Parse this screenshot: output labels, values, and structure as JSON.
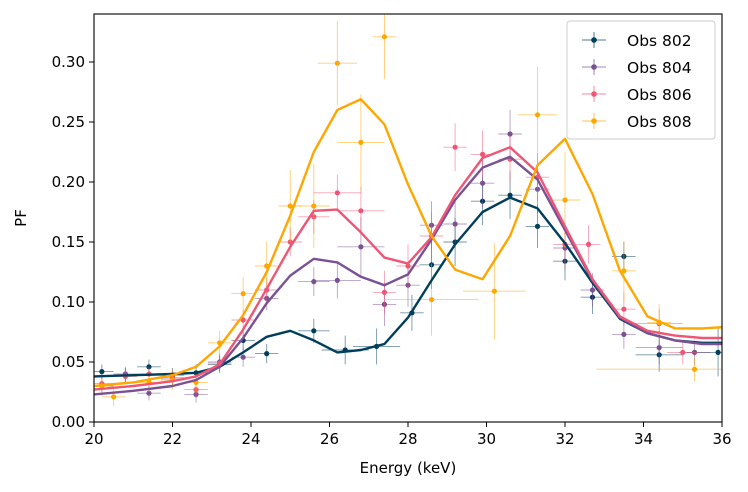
{
  "chart_data": {
    "type": "scatter",
    "title": "",
    "xlabel": "Energy (keV)",
    "ylabel": "PF",
    "xlim": [
      20,
      36
    ],
    "ylim": [
      0,
      0.34
    ],
    "xticks": [
      20,
      22,
      24,
      26,
      28,
      30,
      32,
      34,
      36
    ],
    "yticks": [
      0.0,
      0.05,
      0.1,
      0.15,
      0.2,
      0.25,
      0.3
    ],
    "xtick_labels": [
      "20",
      "22",
      "24",
      "26",
      "28",
      "30",
      "32",
      "34",
      "36"
    ],
    "ytick_labels": [
      "0.00",
      "0.05",
      "0.10",
      "0.15",
      "0.20",
      "0.25",
      "0.30"
    ],
    "legend_position": "top-right",
    "series": [
      {
        "name": "Obs 802",
        "color": "#003f5c",
        "points": [
          {
            "x": 20.2,
            "y": 0.042,
            "xerr": 0.3,
            "yerr": 0.006
          },
          {
            "x": 20.8,
            "y": 0.039,
            "xerr": 0.3,
            "yerr": 0.006
          },
          {
            "x": 21.4,
            "y": 0.046,
            "xerr": 0.3,
            "yerr": 0.006
          },
          {
            "x": 22.0,
            "y": 0.039,
            "xerr": 0.3,
            "yerr": 0.006
          },
          {
            "x": 22.6,
            "y": 0.041,
            "xerr": 0.3,
            "yerr": 0.007
          },
          {
            "x": 23.2,
            "y": 0.048,
            "xerr": 0.3,
            "yerr": 0.007
          },
          {
            "x": 23.8,
            "y": 0.068,
            "xerr": 0.3,
            "yerr": 0.008
          },
          {
            "x": 24.4,
            "y": 0.057,
            "xerr": 0.3,
            "yerr": 0.008
          },
          {
            "x": 25.6,
            "y": 0.076,
            "xerr": 0.4,
            "yerr": 0.01
          },
          {
            "x": 26.4,
            "y": 0.06,
            "xerr": 0.6,
            "yerr": 0.012
          },
          {
            "x": 27.2,
            "y": 0.063,
            "xerr": 0.6,
            "yerr": 0.015
          },
          {
            "x": 28.1,
            "y": 0.091,
            "xerr": 0.3,
            "yerr": 0.015
          },
          {
            "x": 28.6,
            "y": 0.131,
            "xerr": 0.3,
            "yerr": 0.02
          },
          {
            "x": 29.2,
            "y": 0.15,
            "xerr": 0.3,
            "yerr": 0.02
          },
          {
            "x": 29.9,
            "y": 0.184,
            "xerr": 0.3,
            "yerr": 0.02
          },
          {
            "x": 30.6,
            "y": 0.189,
            "xerr": 0.3,
            "yerr": 0.02
          },
          {
            "x": 31.3,
            "y": 0.163,
            "xerr": 0.3,
            "yerr": 0.018
          },
          {
            "x": 32.0,
            "y": 0.134,
            "xerr": 0.3,
            "yerr": 0.016
          },
          {
            "x": 32.7,
            "y": 0.104,
            "xerr": 0.3,
            "yerr": 0.014
          },
          {
            "x": 33.5,
            "y": 0.138,
            "xerr": 0.3,
            "yerr": 0.012
          },
          {
            "x": 34.4,
            "y": 0.056,
            "xerr": 0.6,
            "yerr": 0.014
          },
          {
            "x": 35.9,
            "y": 0.058,
            "xerr": 0.8,
            "yerr": 0.02
          }
        ],
        "model_x": [
          20,
          21,
          22,
          22.6,
          23.2,
          23.8,
          24.4,
          25.0,
          25.6,
          26.2,
          26.8,
          27.4,
          28.0,
          28.6,
          29.2,
          29.9,
          30.6,
          31.3,
          32.0,
          32.7,
          33.4,
          34.1,
          34.8,
          35.5,
          36
        ],
        "model_y": [
          0.038,
          0.039,
          0.04,
          0.041,
          0.046,
          0.058,
          0.071,
          0.076,
          0.068,
          0.058,
          0.06,
          0.065,
          0.087,
          0.118,
          0.148,
          0.175,
          0.187,
          0.178,
          0.149,
          0.116,
          0.086,
          0.074,
          0.068,
          0.066,
          0.066
        ]
      },
      {
        "name": "Obs 804",
        "color": "#7a5195",
        "points": [
          {
            "x": 20.2,
            "y": 0.03,
            "xerr": 0.3,
            "yerr": 0.006
          },
          {
            "x": 20.8,
            "y": 0.04,
            "xerr": 0.3,
            "yerr": 0.006
          },
          {
            "x": 21.4,
            "y": 0.024,
            "xerr": 0.3,
            "yerr": 0.006
          },
          {
            "x": 22.0,
            "y": 0.036,
            "xerr": 0.3,
            "yerr": 0.006
          },
          {
            "x": 22.6,
            "y": 0.023,
            "xerr": 0.3,
            "yerr": 0.007
          },
          {
            "x": 23.2,
            "y": 0.05,
            "xerr": 0.3,
            "yerr": 0.007
          },
          {
            "x": 23.8,
            "y": 0.054,
            "xerr": 0.3,
            "yerr": 0.008
          },
          {
            "x": 24.4,
            "y": 0.103,
            "xerr": 0.3,
            "yerr": 0.01
          },
          {
            "x": 25.6,
            "y": 0.117,
            "xerr": 0.4,
            "yerr": 0.012
          },
          {
            "x": 26.2,
            "y": 0.118,
            "xerr": 0.6,
            "yerr": 0.015
          },
          {
            "x": 26.8,
            "y": 0.146,
            "xerr": 0.6,
            "yerr": 0.025
          },
          {
            "x": 27.4,
            "y": 0.098,
            "xerr": 0.3,
            "yerr": 0.018
          },
          {
            "x": 28.0,
            "y": 0.114,
            "xerr": 0.3,
            "yerr": 0.018
          },
          {
            "x": 28.6,
            "y": 0.164,
            "xerr": 0.3,
            "yerr": 0.02
          },
          {
            "x": 29.2,
            "y": 0.165,
            "xerr": 0.3,
            "yerr": 0.02
          },
          {
            "x": 29.9,
            "y": 0.199,
            "xerr": 0.3,
            "yerr": 0.02
          },
          {
            "x": 30.6,
            "y": 0.24,
            "xerr": 0.3,
            "yerr": 0.02
          },
          {
            "x": 31.3,
            "y": 0.194,
            "xerr": 0.3,
            "yerr": 0.02
          },
          {
            "x": 32.0,
            "y": 0.145,
            "xerr": 0.3,
            "yerr": 0.018
          },
          {
            "x": 32.7,
            "y": 0.11,
            "xerr": 0.3,
            "yerr": 0.014
          },
          {
            "x": 33.5,
            "y": 0.073,
            "xerr": 0.3,
            "yerr": 0.012
          },
          {
            "x": 34.4,
            "y": 0.062,
            "xerr": 0.6,
            "yerr": 0.014
          },
          {
            "x": 35.3,
            "y": 0.058,
            "xerr": 0.4,
            "yerr": 0.01
          }
        ],
        "model_x": [
          20,
          21,
          22,
          22.6,
          23.2,
          23.8,
          24.4,
          25.0,
          25.6,
          26.2,
          26.8,
          27.4,
          28.0,
          28.6,
          29.2,
          29.9,
          30.6,
          31.3,
          32.0,
          32.7,
          33.4,
          34.1,
          34.8,
          35.5,
          36
        ],
        "model_y": [
          0.023,
          0.026,
          0.03,
          0.035,
          0.046,
          0.07,
          0.099,
          0.122,
          0.136,
          0.133,
          0.121,
          0.114,
          0.123,
          0.152,
          0.185,
          0.212,
          0.221,
          0.202,
          0.16,
          0.118,
          0.087,
          0.074,
          0.068,
          0.065,
          0.065
        ]
      },
      {
        "name": "Obs 806",
        "color": "#ef5675",
        "points": [
          {
            "x": 20.2,
            "y": 0.032,
            "xerr": 0.3,
            "yerr": 0.006
          },
          {
            "x": 20.8,
            "y": 0.038,
            "xerr": 0.3,
            "yerr": 0.006
          },
          {
            "x": 21.4,
            "y": 0.04,
            "xerr": 0.3,
            "yerr": 0.006
          },
          {
            "x": 22.0,
            "y": 0.037,
            "xerr": 0.3,
            "yerr": 0.006
          },
          {
            "x": 22.6,
            "y": 0.027,
            "xerr": 0.3,
            "yerr": 0.007
          },
          {
            "x": 23.2,
            "y": 0.049,
            "xerr": 0.3,
            "yerr": 0.007
          },
          {
            "x": 23.8,
            "y": 0.085,
            "xerr": 0.3,
            "yerr": 0.009
          },
          {
            "x": 24.4,
            "y": 0.11,
            "xerr": 0.3,
            "yerr": 0.01
          },
          {
            "x": 25.0,
            "y": 0.15,
            "xerr": 0.3,
            "yerr": 0.012
          },
          {
            "x": 25.6,
            "y": 0.171,
            "xerr": 0.4,
            "yerr": 0.014
          },
          {
            "x": 26.2,
            "y": 0.191,
            "xerr": 0.6,
            "yerr": 0.015
          },
          {
            "x": 26.8,
            "y": 0.176,
            "xerr": 0.6,
            "yerr": 0.02
          },
          {
            "x": 27.4,
            "y": 0.108,
            "xerr": 0.3,
            "yerr": 0.018
          },
          {
            "x": 28.0,
            "y": 0.13,
            "xerr": 0.3,
            "yerr": 0.018
          },
          {
            "x": 28.6,
            "y": 0.155,
            "xerr": 0.3,
            "yerr": 0.02
          },
          {
            "x": 29.2,
            "y": 0.229,
            "xerr": 0.3,
            "yerr": 0.02
          },
          {
            "x": 29.9,
            "y": 0.223,
            "xerr": 0.3,
            "yerr": 0.02
          },
          {
            "x": 30.6,
            "y": 0.219,
            "xerr": 0.3,
            "yerr": 0.02
          },
          {
            "x": 31.3,
            "y": 0.204,
            "xerr": 0.3,
            "yerr": 0.02
          },
          {
            "x": 32.0,
            "y": 0.148,
            "xerr": 0.3,
            "yerr": 0.018
          },
          {
            "x": 32.6,
            "y": 0.148,
            "xerr": 0.3,
            "yerr": 0.016
          },
          {
            "x": 33.5,
            "y": 0.094,
            "xerr": 0.3,
            "yerr": 0.014
          },
          {
            "x": 34.4,
            "y": 0.082,
            "xerr": 0.6,
            "yerr": 0.012
          },
          {
            "x": 35.0,
            "y": 0.058,
            "xerr": 0.4,
            "yerr": 0.01
          }
        ],
        "model_x": [
          20,
          21,
          22,
          22.6,
          23.2,
          23.8,
          24.4,
          25.0,
          25.6,
          26.2,
          26.8,
          27.4,
          28.0,
          28.6,
          29.2,
          29.9,
          30.6,
          31.3,
          32.0,
          32.7,
          33.4,
          34.1,
          34.8,
          35.5,
          36
        ],
        "model_y": [
          0.027,
          0.03,
          0.034,
          0.038,
          0.048,
          0.077,
          0.111,
          0.146,
          0.176,
          0.177,
          0.158,
          0.137,
          0.132,
          0.154,
          0.189,
          0.22,
          0.229,
          0.208,
          0.163,
          0.119,
          0.088,
          0.076,
          0.072,
          0.07,
          0.07
        ]
      },
      {
        "name": "Obs 808",
        "color": "#ffa600",
        "points": [
          {
            "x": 20.2,
            "y": 0.03,
            "xerr": 0.3,
            "yerr": 0.008
          },
          {
            "x": 20.5,
            "y": 0.021,
            "xerr": 0.3,
            "yerr": 0.008
          },
          {
            "x": 21.4,
            "y": 0.033,
            "xerr": 0.3,
            "yerr": 0.008
          },
          {
            "x": 22.0,
            "y": 0.035,
            "xerr": 0.3,
            "yerr": 0.008
          },
          {
            "x": 22.6,
            "y": 0.033,
            "xerr": 0.3,
            "yerr": 0.009
          },
          {
            "x": 23.2,
            "y": 0.066,
            "xerr": 0.3,
            "yerr": 0.01
          },
          {
            "x": 23.8,
            "y": 0.107,
            "xerr": 0.3,
            "yerr": 0.014
          },
          {
            "x": 24.4,
            "y": 0.13,
            "xerr": 0.3,
            "yerr": 0.02
          },
          {
            "x": 25.0,
            "y": 0.18,
            "xerr": 0.3,
            "yerr": 0.03
          },
          {
            "x": 25.6,
            "y": 0.18,
            "xerr": 0.4,
            "yerr": 0.035
          },
          {
            "x": 26.2,
            "y": 0.299,
            "xerr": 0.5,
            "yerr": 0.035
          },
          {
            "x": 26.8,
            "y": 0.233,
            "xerr": 0.6,
            "yerr": 0.04
          },
          {
            "x": 27.4,
            "y": 0.321,
            "xerr": 0.3,
            "yerr": 0.035
          },
          {
            "x": 28.6,
            "y": 0.102,
            "xerr": 1.2,
            "yerr": 0.03
          },
          {
            "x": 30.2,
            "y": 0.109,
            "xerr": 0.8,
            "yerr": 0.04
          },
          {
            "x": 31.3,
            "y": 0.256,
            "xerr": 0.5,
            "yerr": 0.04
          },
          {
            "x": 32.0,
            "y": 0.185,
            "xerr": 0.4,
            "yerr": 0.04
          },
          {
            "x": 33.5,
            "y": 0.126,
            "xerr": 0.3,
            "yerr": 0.025
          },
          {
            "x": 34.4,
            "y": 0.083,
            "xerr": 0.3,
            "yerr": 0.015
          },
          {
            "x": 35.3,
            "y": 0.044,
            "xerr": 2.5,
            "yerr": 0.01
          }
        ],
        "model_x": [
          20,
          21,
          22,
          22.6,
          23.2,
          23.8,
          24.4,
          25.0,
          25.6,
          26.2,
          26.8,
          27.4,
          28.0,
          28.6,
          29.2,
          29.9,
          30.6,
          31.3,
          32.0,
          32.7,
          33.4,
          34.1,
          34.8,
          35.5,
          36
        ],
        "model_y": [
          0.03,
          0.033,
          0.039,
          0.046,
          0.063,
          0.089,
          0.125,
          0.172,
          0.225,
          0.26,
          0.269,
          0.248,
          0.198,
          0.155,
          0.127,
          0.119,
          0.155,
          0.214,
          0.236,
          0.19,
          0.126,
          0.088,
          0.078,
          0.078,
          0.079
        ]
      }
    ]
  }
}
